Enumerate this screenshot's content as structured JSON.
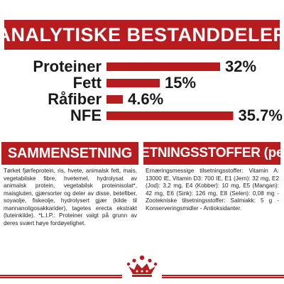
{
  "analysis": {
    "title": "ANALYTISKE BESTANDDELER"
  },
  "chart_data": {
    "type": "bar",
    "orientation": "horizontal",
    "title": "ANALYTISKE BESTANDDELER",
    "categories": [
      "Proteiner",
      "Fett",
      "Råfiber",
      "NFE"
    ],
    "values": [
      32,
      15,
      4.6,
      35.7
    ],
    "value_labels": [
      "32%",
      "15%",
      "4.6%",
      "35.7%"
    ],
    "unit": "%",
    "xlim": [
      0,
      36
    ],
    "grid": false,
    "legend": "none",
    "bar_color": "#b71c1f"
  },
  "composition": {
    "title": "SAMMENSETNING",
    "text": "Tørket fjørfeprotein, ris, hvete, animalsk fett, mais, vegetabilske fibre, hvetemel, hydrolysat av animalsk protein, vegetabilsk proteinisolat*, maisgluten, gjærsorter og deler av disse, betefiber, soyaolje, fiskeolje, hydrolysert gjær (kilde til mannanoligosakkarider), tagetes erecta ekstrakt (luteinkilde). *L.I.P.: Proteiner valgt på grunn av deres svært høye fordøyelighet."
  },
  "additives": {
    "title": "TILSETNINGSSTOFFER (per kg)",
    "text": "Ernæringsmessige tilsetningsstoffer: Vitamin A: 13000 IE, Vitamin D3: 700 IE, E1 (Jern): 32 mg, E2 (Jod): 3,2 mg, E4 (Kobber): 10 mg, E5 (Mangan): 42 mg, E6 (Sink): 126 mg, E8 (Selen): 0,08 mg - Zootekniske tilsetningsstoffer: Salmiakk: 5 g - Konserveringsmidler - Antioksidanter."
  },
  "brand": {
    "logo": "royal-canin-crown-icon",
    "accent_color": "#b71c1f"
  }
}
